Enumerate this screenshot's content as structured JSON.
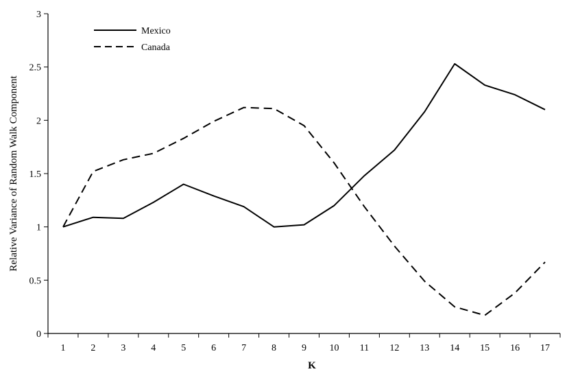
{
  "chart_data": {
    "type": "line",
    "title": "",
    "xlabel": "K",
    "ylabel": "Relative Variance of Random Walk Component",
    "x": [
      1,
      2,
      3,
      4,
      5,
      6,
      7,
      8,
      9,
      10,
      11,
      12,
      13,
      14,
      15,
      16,
      17
    ],
    "x_tick_labels": [
      "1",
      "2",
      "3",
      "4",
      "5",
      "6",
      "7",
      "8",
      "9",
      "10",
      "11",
      "12",
      "13",
      "14",
      "15",
      "16",
      "17"
    ],
    "ylim": [
      0,
      3
    ],
    "y_ticks": [
      0,
      0.5,
      1,
      1.5,
      2,
      2.5,
      3
    ],
    "y_tick_labels": [
      "0",
      "0.5",
      "1",
      "1.5",
      "2",
      "2.5",
      "3"
    ],
    "grid": false,
    "legend_position": "top-left",
    "series": [
      {
        "name": "Mexico",
        "style": "solid",
        "color": "#000000",
        "values": [
          1.0,
          1.09,
          1.08,
          1.23,
          1.4,
          1.29,
          1.19,
          1.0,
          1.02,
          1.2,
          1.48,
          1.72,
          2.08,
          2.53,
          2.33,
          2.24,
          2.1
        ]
      },
      {
        "name": "Canada",
        "style": "dashed",
        "color": "#000000",
        "values": [
          1.0,
          1.52,
          1.63,
          1.69,
          1.83,
          1.99,
          2.12,
          2.11,
          1.95,
          1.6,
          1.19,
          0.82,
          0.49,
          0.25,
          0.17,
          0.38,
          0.67
        ]
      }
    ]
  }
}
